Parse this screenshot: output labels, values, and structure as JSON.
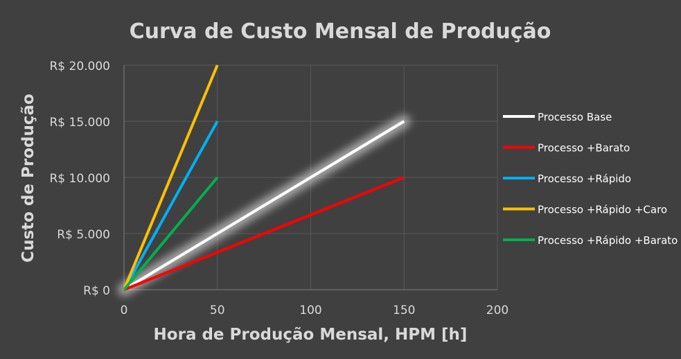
{
  "chart_data": {
    "type": "line",
    "title": "Curva de Custo Mensal de Produção",
    "xlabel": "Hora de Produção Mensal, HPM [h]",
    "ylabel": "Custo de Produção",
    "xlim": [
      0,
      200
    ],
    "ylim": [
      0,
      20000
    ],
    "x_ticks": [
      0,
      50,
      100,
      150,
      200
    ],
    "x_tick_labels": [
      "0",
      "50",
      "100",
      "150",
      "200"
    ],
    "y_ticks": [
      0,
      5000,
      10000,
      15000,
      20000
    ],
    "y_tick_labels": [
      "R$ 0",
      "R$ 5.000",
      "R$ 10.000",
      "R$ 15.000",
      "R$ 20.000"
    ],
    "grid": true,
    "legend_position": "right",
    "background_color": "#404040",
    "series": [
      {
        "name": "Processo Base",
        "color": "#ffffff",
        "glow": true,
        "points": [
          [
            0,
            0
          ],
          [
            150,
            15000
          ]
        ]
      },
      {
        "name": "Processo +Barato",
        "color": "#ff0000",
        "glow": false,
        "points": [
          [
            0,
            0
          ],
          [
            150,
            10000
          ]
        ]
      },
      {
        "name": "Processo +Rápido",
        "color": "#00b0f0",
        "glow": false,
        "points": [
          [
            0,
            0
          ],
          [
            50,
            15000
          ]
        ]
      },
      {
        "name": "Processo +Rápido +Caro",
        "color": "#ffc000",
        "glow": false,
        "points": [
          [
            0,
            0
          ],
          [
            50,
            20000
          ]
        ]
      },
      {
        "name": "Processo +Rápido +Barato",
        "color": "#00b050",
        "glow": false,
        "points": [
          [
            0,
            0
          ],
          [
            50,
            10000
          ]
        ]
      }
    ]
  }
}
